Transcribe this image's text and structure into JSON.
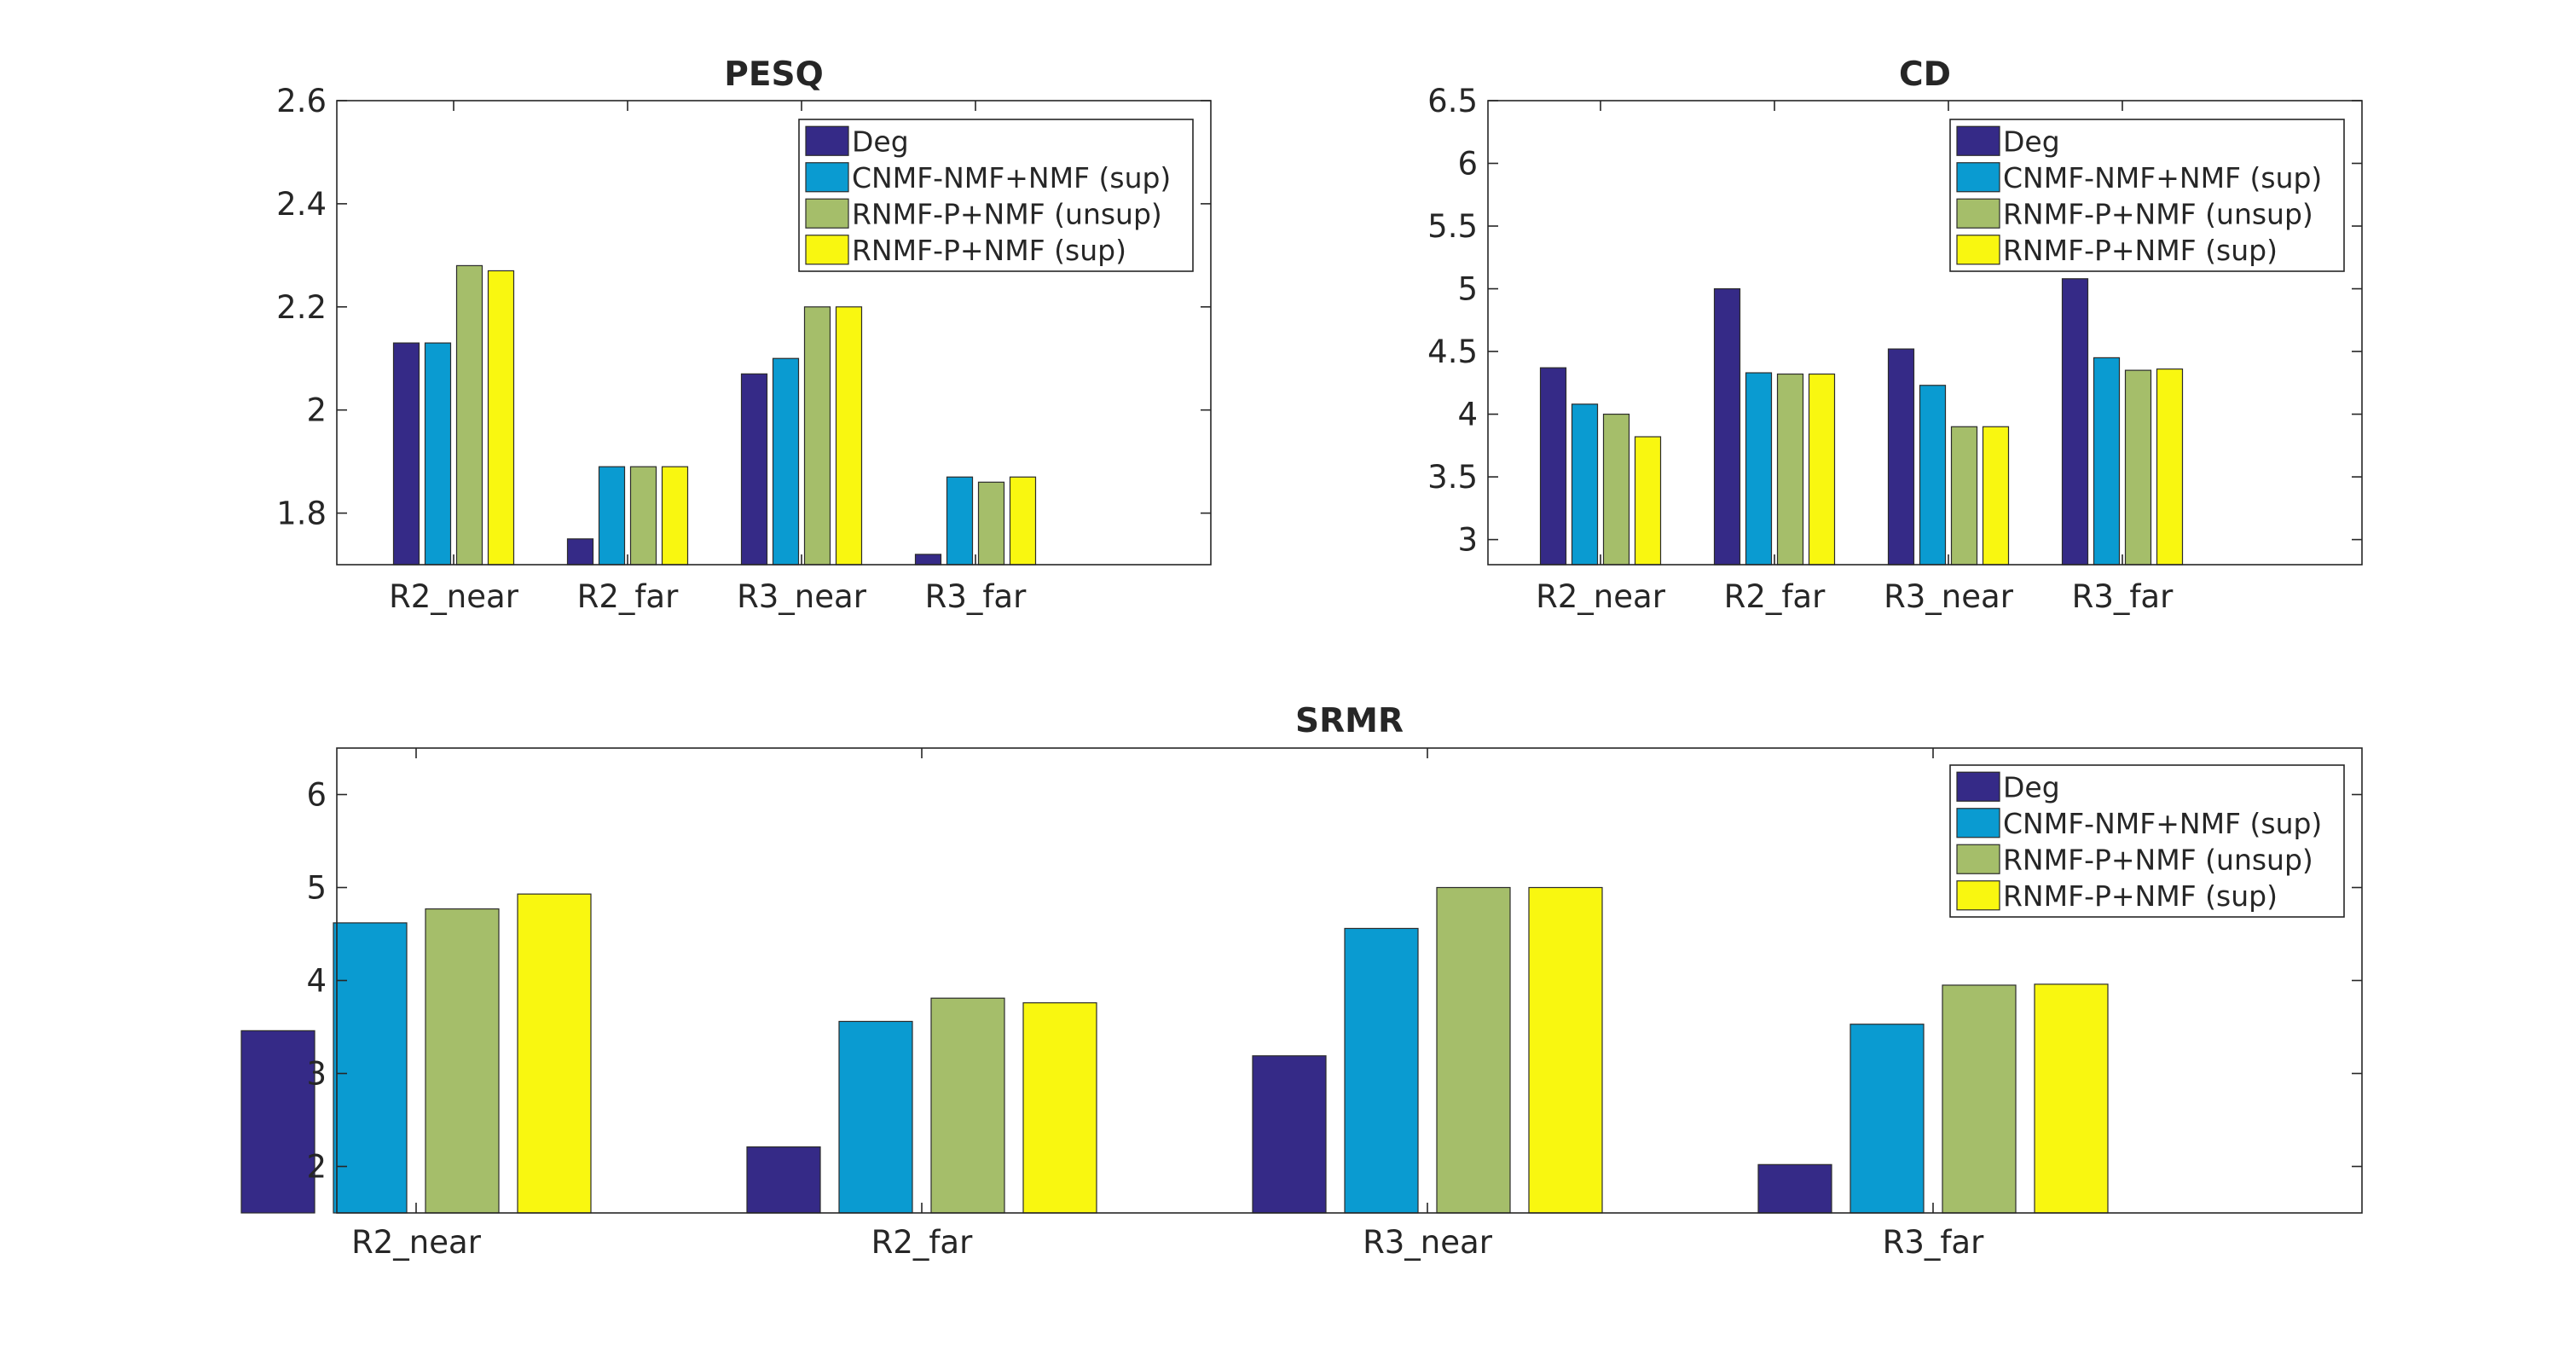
{
  "figure": {
    "colors": {
      "Deg": "#352a87",
      "CNMF-NMF+NMF (sup)": "#0a9bd1",
      "RNMF-P+NMF (unsup)": "#a5be6a",
      "RNMF-P+NMF (sup)": "#f9f710"
    }
  },
  "chart_data": [
    {
      "type": "bar",
      "title": "PESQ",
      "xlabel": "",
      "ylabel": "",
      "categories": [
        "R2_near",
        "R2_far",
        "R3_near",
        "R3_far"
      ],
      "ylim": [
        1.7,
        2.6
      ],
      "yticks": [
        1.8,
        2.0,
        2.2,
        2.4,
        2.6
      ],
      "ytick_labels": [
        "1.8",
        "2",
        "2.2",
        "2.4",
        "2.6"
      ],
      "series": [
        {
          "name": "Deg",
          "values": [
            2.13,
            1.75,
            2.07,
            1.72
          ]
        },
        {
          "name": "CNMF-NMF+NMF (sup)",
          "values": [
            2.13,
            1.89,
            2.1,
            1.87
          ]
        },
        {
          "name": "RNMF-P+NMF (unsup)",
          "values": [
            2.28,
            1.89,
            2.2,
            1.86
          ]
        },
        {
          "name": "RNMF-P+NMF (sup)",
          "values": [
            2.27,
            1.89,
            2.2,
            1.87
          ]
        }
      ],
      "legend": "top-right",
      "grid": false
    },
    {
      "type": "bar",
      "title": "CD",
      "xlabel": "",
      "ylabel": "",
      "categories": [
        "R2_near",
        "R2_far",
        "R3_near",
        "R3_far"
      ],
      "ylim": [
        2.8,
        6.5
      ],
      "yticks": [
        3,
        3.5,
        4,
        4.5,
        5,
        5.5,
        6,
        6.5
      ],
      "ytick_labels": [
        "3",
        "3.5",
        "4",
        "4.5",
        "5",
        "5.5",
        "6",
        "6.5"
      ],
      "series": [
        {
          "name": "Deg",
          "values": [
            4.37,
            5.0,
            4.52,
            5.08
          ]
        },
        {
          "name": "CNMF-NMF+NMF (sup)",
          "values": [
            4.08,
            4.33,
            4.23,
            4.45
          ]
        },
        {
          "name": "RNMF-P+NMF (unsup)",
          "values": [
            4.0,
            4.32,
            3.9,
            4.35
          ]
        },
        {
          "name": "RNMF-P+NMF (sup)",
          "values": [
            3.82,
            4.32,
            3.9,
            4.36
          ]
        }
      ],
      "legend": "top-right",
      "grid": false
    },
    {
      "type": "bar",
      "title": "SRMR",
      "xlabel": "",
      "ylabel": "",
      "categories": [
        "R2_near",
        "R2_far",
        "R3_near",
        "R3_far"
      ],
      "ylim": [
        1.5,
        6.5
      ],
      "yticks": [
        2,
        3,
        4,
        5,
        6
      ],
      "ytick_labels": [
        "2",
        "3",
        "4",
        "5",
        "6"
      ],
      "series": [
        {
          "name": "Deg",
          "values": [
            3.46,
            2.21,
            3.19,
            2.02
          ]
        },
        {
          "name": "CNMF-NMF+NMF (sup)",
          "values": [
            4.62,
            3.56,
            4.56,
            3.53
          ]
        },
        {
          "name": "RNMF-P+NMF (unsup)",
          "values": [
            4.77,
            3.81,
            5.0,
            3.95
          ]
        },
        {
          "name": "RNMF-P+NMF (sup)",
          "values": [
            4.93,
            3.76,
            5.0,
            3.96
          ]
        }
      ],
      "legend": "top-right",
      "grid": false
    }
  ]
}
